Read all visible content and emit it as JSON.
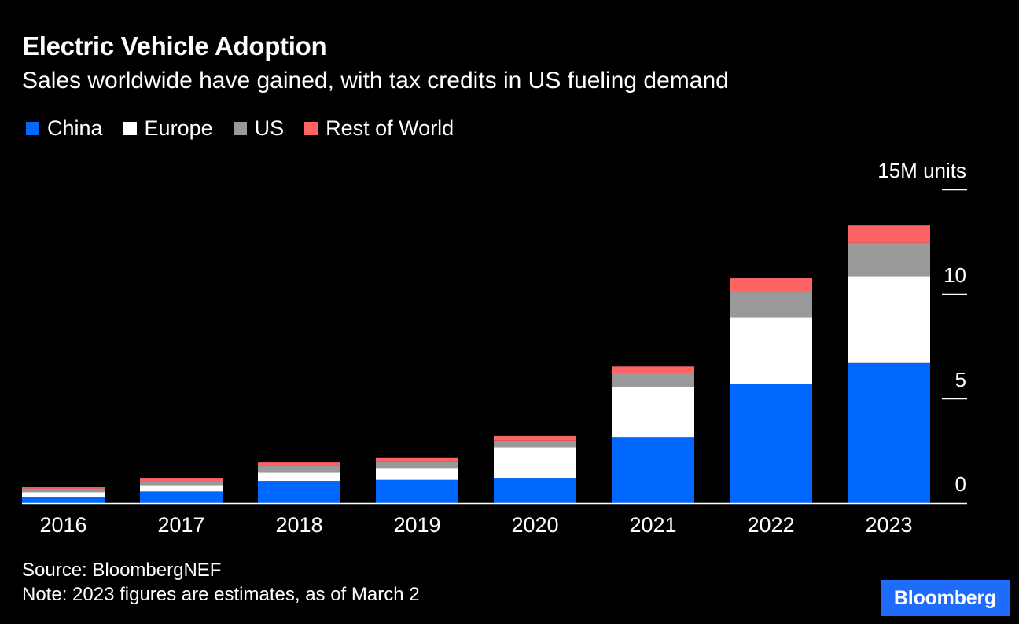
{
  "header": {
    "title": "Electric Vehicle Adoption",
    "subtitle": "Sales worldwide have gained, with tax credits in US fueling demand"
  },
  "legend": [
    {
      "label": "China",
      "color": "#0068ff"
    },
    {
      "label": "Europe",
      "color": "#ffffff"
    },
    {
      "label": "US",
      "color": "#999999"
    },
    {
      "label": "Rest of World",
      "color": "#ff6464"
    }
  ],
  "footer": {
    "source": "Source: BloombergNEF",
    "note": "Note: 2023 figures are estimates, as of March 2"
  },
  "logo": {
    "text": "Bloomberg",
    "color": "#1f6cfa"
  },
  "chart_data": {
    "type": "bar",
    "stacked": true,
    "categories": [
      "2016",
      "2017",
      "2018",
      "2019",
      "2020",
      "2021",
      "2022",
      "2023"
    ],
    "series": [
      {
        "name": "China",
        "color": "#0068ff",
        "values": [
          0.3,
          0.55,
          1.05,
          1.1,
          1.2,
          3.15,
          5.7,
          6.7
        ]
      },
      {
        "name": "Europe",
        "color": "#ffffff",
        "values": [
          0.22,
          0.3,
          0.4,
          0.55,
          1.45,
          2.4,
          3.2,
          4.15
        ]
      },
      {
        "name": "US",
        "color": "#999999",
        "values": [
          0.16,
          0.2,
          0.35,
          0.33,
          0.33,
          0.68,
          1.25,
          1.6
        ]
      },
      {
        "name": "Rest of World",
        "color": "#ff6464",
        "values": [
          0.07,
          0.15,
          0.15,
          0.17,
          0.22,
          0.3,
          0.6,
          0.85
        ]
      }
    ],
    "ylim": [
      0,
      15
    ],
    "yticks": [
      {
        "value": 0,
        "label": "0"
      },
      {
        "value": 5,
        "label": "5"
      },
      {
        "value": 10,
        "label": "10"
      },
      {
        "value": 15,
        "label": "15M units"
      }
    ],
    "y_axis_side": "right",
    "grid": false
  }
}
